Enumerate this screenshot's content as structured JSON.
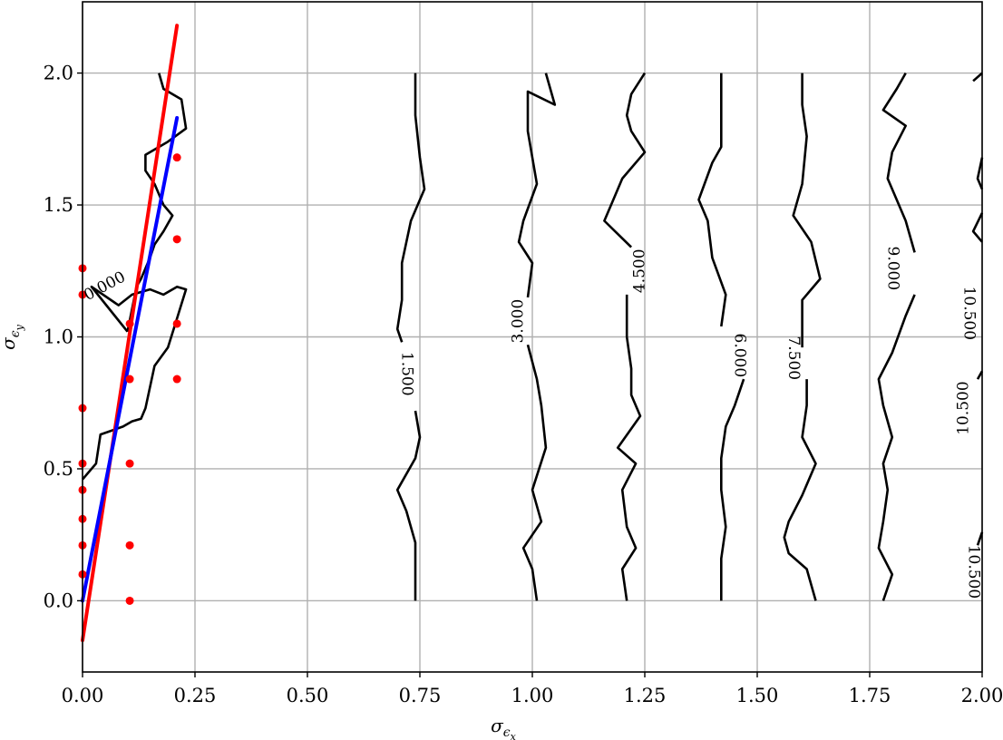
{
  "chart_data": {
    "type": "line",
    "title": "",
    "xlabel": "σ_εx",
    "ylabel": "σ_εy",
    "xlabel_main": "σ",
    "xlabel_sub": "ϵ",
    "xlabel_subsub": "x",
    "ylabel_main": "σ",
    "ylabel_sub": "ϵ",
    "ylabel_subsub": "y",
    "xlim": [
      0,
      2.0
    ],
    "ylim": [
      -0.27,
      2.27
    ],
    "grid": true,
    "x_ticks": [
      {
        "value": 0.0,
        "label": "0.00"
      },
      {
        "value": 0.25,
        "label": "0.25"
      },
      {
        "value": 0.5,
        "label": "0.50"
      },
      {
        "value": 0.75,
        "label": "0.75"
      },
      {
        "value": 1.0,
        "label": "1.00"
      },
      {
        "value": 1.25,
        "label": "1.25"
      },
      {
        "value": 1.5,
        "label": "1.50"
      },
      {
        "value": 1.75,
        "label": "1.75"
      },
      {
        "value": 2.0,
        "label": "2.00"
      }
    ],
    "y_ticks": [
      {
        "value": 0.0,
        "label": "0.0"
      },
      {
        "value": 0.5,
        "label": "0.5"
      },
      {
        "value": 1.0,
        "label": "1.0"
      },
      {
        "value": 1.5,
        "label": "1.5"
      },
      {
        "value": 2.0,
        "label": "2.0"
      }
    ],
    "contours": [
      {
        "level": "0.000",
        "segments": [
          [
            [
              0.0,
              0.46
            ],
            [
              0.03,
              0.52
            ],
            [
              0.04,
              0.63
            ],
            [
              0.09,
              0.66
            ],
            [
              0.11,
              0.68
            ],
            [
              0.13,
              0.69
            ],
            [
              0.14,
              0.73
            ],
            [
              0.16,
              0.89
            ],
            [
              0.19,
              0.96
            ],
            [
              0.21,
              1.07
            ],
            [
              0.23,
              1.18
            ],
            [
              0.21,
              1.19
            ],
            [
              0.18,
              1.16
            ],
            [
              0.15,
              1.18
            ],
            [
              0.11,
              1.16
            ],
            [
              0.08,
              1.12
            ],
            [
              0.02,
              1.19
            ],
            [
              0.1,
              1.02
            ]
          ],
          [
            [
              0.1,
              1.02
            ],
            [
              0.12,
              1.19
            ],
            [
              0.13,
              1.22
            ],
            [
              0.15,
              1.3
            ],
            [
              0.16,
              1.35
            ],
            [
              0.18,
              1.4
            ],
            [
              0.2,
              1.46
            ],
            [
              0.18,
              1.5
            ],
            [
              0.16,
              1.58
            ],
            [
              0.14,
              1.63
            ],
            [
              0.14,
              1.69
            ],
            [
              0.19,
              1.74
            ],
            [
              0.23,
              1.79
            ],
            [
              0.22,
              1.9
            ],
            [
              0.18,
              1.94
            ],
            [
              0.17,
              2.0
            ]
          ]
        ],
        "labels": [
          {
            "x": 0.05,
            "y": 1.19,
            "angle": -28
          }
        ]
      },
      {
        "level": "1.500",
        "segments": [
          [
            [
              0.74,
              0.0
            ],
            [
              0.74,
              0.22
            ],
            [
              0.72,
              0.34
            ],
            [
              0.7,
              0.42
            ],
            [
              0.74,
              0.54
            ],
            [
              0.75,
              0.62
            ],
            [
              0.74,
              0.72
            ]
          ],
          [
            [
              0.71,
              0.98
            ],
            [
              0.7,
              1.03
            ],
            [
              0.71,
              1.14
            ],
            [
              0.71,
              1.28
            ],
            [
              0.73,
              1.44
            ],
            [
              0.76,
              1.56
            ],
            [
              0.75,
              1.68
            ],
            [
              0.74,
              1.84
            ],
            [
              0.74,
              2.0
            ]
          ]
        ],
        "labels": [
          {
            "x": 0.72,
            "y": 0.86,
            "angle": 90
          }
        ]
      },
      {
        "level": "3.000",
        "segments": [
          [
            [
              1.01,
              0.0
            ],
            [
              1.0,
              0.12
            ],
            [
              0.98,
              0.2
            ],
            [
              1.02,
              0.3
            ],
            [
              1.0,
              0.42
            ],
            [
              1.03,
              0.58
            ],
            [
              1.02,
              0.74
            ],
            [
              1.01,
              0.84
            ],
            [
              0.99,
              0.97
            ]
          ],
          [
            [
              0.99,
              1.15
            ],
            [
              1.0,
              1.28
            ],
            [
              0.97,
              1.36
            ],
            [
              0.98,
              1.44
            ],
            [
              1.01,
              1.58
            ],
            [
              0.99,
              1.78
            ],
            [
              0.99,
              1.93
            ],
            [
              1.05,
              1.88
            ],
            [
              1.03,
              2.0
            ]
          ]
        ],
        "labels": [
          {
            "x": 0.97,
            "y": 1.06,
            "angle": -90
          }
        ]
      },
      {
        "level": "4.500",
        "segments": [
          [
            [
              1.21,
              0.0
            ],
            [
              1.2,
              0.12
            ],
            [
              1.23,
              0.2
            ],
            [
              1.21,
              0.28
            ],
            [
              1.2,
              0.42
            ],
            [
              1.23,
              0.52
            ],
            [
              1.19,
              0.58
            ],
            [
              1.24,
              0.7
            ],
            [
              1.22,
              0.78
            ],
            [
              1.22,
              0.88
            ],
            [
              1.21,
              1.0
            ],
            [
              1.21,
              1.16
            ]
          ],
          [
            [
              1.22,
              1.34
            ],
            [
              1.16,
              1.44
            ],
            [
              1.18,
              1.52
            ],
            [
              1.2,
              1.6
            ],
            [
              1.25,
              1.7
            ],
            [
              1.22,
              1.78
            ],
            [
              1.21,
              1.84
            ],
            [
              1.22,
              1.92
            ],
            [
              1.25,
              2.0
            ]
          ]
        ],
        "labels": [
          {
            "x": 1.24,
            "y": 1.25,
            "angle": -90
          }
        ]
      },
      {
        "level": "6.000",
        "segments": [
          [
            [
              1.42,
              0.0
            ],
            [
              1.42,
              0.16
            ],
            [
              1.43,
              0.28
            ],
            [
              1.42,
              0.42
            ],
            [
              1.42,
              0.54
            ],
            [
              1.43,
              0.66
            ],
            [
              1.45,
              0.74
            ],
            [
              1.47,
              0.84
            ]
          ],
          [
            [
              1.42,
              1.04
            ],
            [
              1.43,
              1.16
            ],
            [
              1.4,
              1.3
            ],
            [
              1.39,
              1.44
            ],
            [
              1.37,
              1.52
            ],
            [
              1.4,
              1.66
            ],
            [
              1.42,
              1.72
            ],
            [
              1.42,
              1.8
            ],
            [
              1.42,
              2.0
            ]
          ]
        ],
        "labels": [
          {
            "x": 1.46,
            "y": 0.93,
            "angle": 90
          }
        ]
      },
      {
        "level": "7.500",
        "segments": [
          [
            [
              1.63,
              0.0
            ],
            [
              1.61,
              0.12
            ],
            [
              1.57,
              0.18
            ],
            [
              1.56,
              0.24
            ],
            [
              1.57,
              0.3
            ],
            [
              1.6,
              0.4
            ],
            [
              1.63,
              0.52
            ],
            [
              1.6,
              0.62
            ],
            [
              1.61,
              0.74
            ],
            [
              1.61,
              0.84
            ]
          ],
          [
            [
              1.6,
              0.96
            ],
            [
              1.6,
              1.14
            ],
            [
              1.64,
              1.22
            ],
            [
              1.62,
              1.36
            ],
            [
              1.58,
              1.46
            ],
            [
              1.6,
              1.58
            ],
            [
              1.61,
              1.76
            ],
            [
              1.6,
              1.88
            ],
            [
              1.6,
              2.0
            ]
          ]
        ],
        "labels": [
          {
            "x": 1.58,
            "y": 0.92,
            "angle": 90
          }
        ]
      },
      {
        "level": "9.000",
        "segments": [
          [
            [
              1.78,
              0.0
            ],
            [
              1.8,
              0.1
            ],
            [
              1.77,
              0.2
            ],
            [
              1.78,
              0.3
            ],
            [
              1.79,
              0.42
            ],
            [
              1.78,
              0.52
            ],
            [
              1.8,
              0.62
            ],
            [
              1.78,
              0.74
            ],
            [
              1.77,
              0.84
            ],
            [
              1.8,
              0.94
            ],
            [
              1.83,
              1.08
            ],
            [
              1.85,
              1.16
            ]
          ],
          [
            [
              1.85,
              1.32
            ],
            [
              1.83,
              1.44
            ],
            [
              1.81,
              1.52
            ],
            [
              1.79,
              1.6
            ],
            [
              1.8,
              1.7
            ],
            [
              1.83,
              1.8
            ],
            [
              1.78,
              1.86
            ],
            [
              1.81,
              1.94
            ],
            [
              1.83,
              2.0
            ]
          ]
        ],
        "labels": [
          {
            "x": 1.8,
            "y": 1.26,
            "angle": 90
          }
        ]
      },
      {
        "level": "10.500",
        "segments": [
          [
            [
              1.98,
              1.97
            ],
            [
              2.0,
              2.0
            ]
          ],
          [
            [
              2.0,
              1.68
            ],
            [
              1.99,
              1.6
            ],
            [
              2.0,
              1.56
            ]
          ],
          [
            [
              2.0,
              1.47
            ],
            [
              1.98,
              1.4
            ],
            [
              2.0,
              1.36
            ]
          ],
          [
            [
              2.0,
              0.87
            ],
            [
              1.99,
              0.84
            ]
          ],
          [
            [
              2.0,
              0.26
            ],
            [
              1.99,
              0.21
            ]
          ]
        ],
        "labels": [
          {
            "x": 1.97,
            "y": 1.09,
            "angle": 90
          },
          {
            "x": 1.96,
            "y": 0.73,
            "angle": -90
          },
          {
            "x": 1.98,
            "y": 0.11,
            "angle": 90
          }
        ]
      }
    ],
    "series": [
      {
        "type": "line",
        "color": "#ff0000",
        "points": [
          [
            0.0,
            -0.15
          ],
          [
            0.21,
            2.18
          ]
        ]
      },
      {
        "type": "line",
        "color": "#0000ff",
        "points": [
          [
            0.0,
            0.0
          ],
          [
            0.21,
            1.83
          ]
        ]
      },
      {
        "type": "scatter",
        "color": "#ff0000",
        "points": [
          [
            0.0,
            1.26
          ],
          [
            0.0,
            1.16
          ],
          [
            0.0,
            0.73
          ],
          [
            0.0,
            0.52
          ],
          [
            0.0,
            0.42
          ],
          [
            0.0,
            0.31
          ],
          [
            0.0,
            0.21
          ],
          [
            0.0,
            0.1
          ],
          [
            0.105,
            1.05
          ],
          [
            0.105,
            0.84
          ],
          [
            0.105,
            0.52
          ],
          [
            0.105,
            0.21
          ],
          [
            0.105,
            0.0
          ],
          [
            0.21,
            1.68
          ],
          [
            0.21,
            1.37
          ],
          [
            0.21,
            1.05
          ],
          [
            0.21,
            0.84
          ]
        ]
      }
    ]
  }
}
